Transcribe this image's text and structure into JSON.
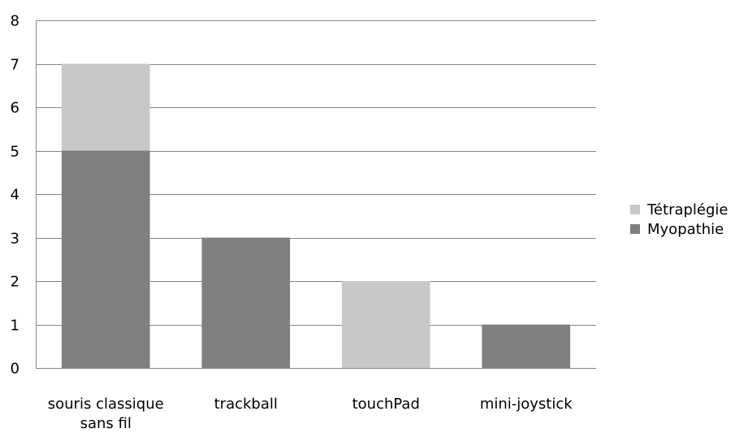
{
  "chart_data": {
    "type": "bar",
    "stacked": true,
    "categories": [
      [
        "souris classique",
        "sans fil"
      ],
      [
        "trackball"
      ],
      [
        "touchPad"
      ],
      [
        "mini-joystick"
      ]
    ],
    "series": [
      {
        "name": "Myopathie",
        "values": [
          5,
          3,
          0,
          1
        ],
        "color": "#808080"
      },
      {
        "name": "Tétraplégie",
        "values": [
          2,
          0,
          2,
          0
        ],
        "color": "#c8c8c8"
      }
    ],
    "ylim": [
      0,
      8
    ],
    "yticks": [
      0,
      1,
      2,
      3,
      4,
      5,
      6,
      7,
      8
    ],
    "grid": true,
    "legend_position": "right",
    "legend_order": [
      "Tétraplégie",
      "Myopathie"
    ],
    "gridline_color": "#868686",
    "title": "",
    "xlabel": "",
    "ylabel": ""
  }
}
